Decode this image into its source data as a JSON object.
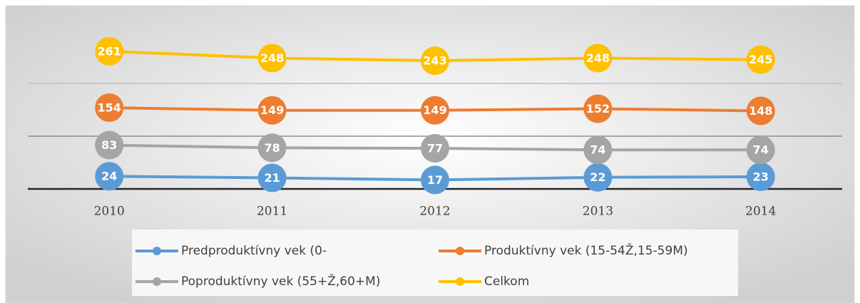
{
  "chart_data": {
    "type": "line",
    "categories": [
      "2010",
      "2011",
      "2012",
      "2013",
      "2014"
    ],
    "series": [
      {
        "name": "Predproduktívny vek (0-",
        "color": "#5b9bd5",
        "values": [
          24,
          21,
          17,
          22,
          23
        ]
      },
      {
        "name": "Produktívny vek (15-54Ž,15-59M)",
        "color": "#ed7d31",
        "values": [
          154,
          149,
          149,
          152,
          148
        ]
      },
      {
        "name": "Poproduktívny vek (55+Ž,60+M)",
        "color": "#a5a5a5",
        "values": [
          83,
          78,
          77,
          74,
          74
        ]
      },
      {
        "name": "Celkom",
        "color": "#ffc000",
        "values": [
          261,
          248,
          243,
          248,
          245
        ]
      }
    ],
    "ylim": [
      0,
      300
    ],
    "yticks": [
      0,
      100,
      200
    ],
    "grid": true,
    "legend": "bottom"
  }
}
